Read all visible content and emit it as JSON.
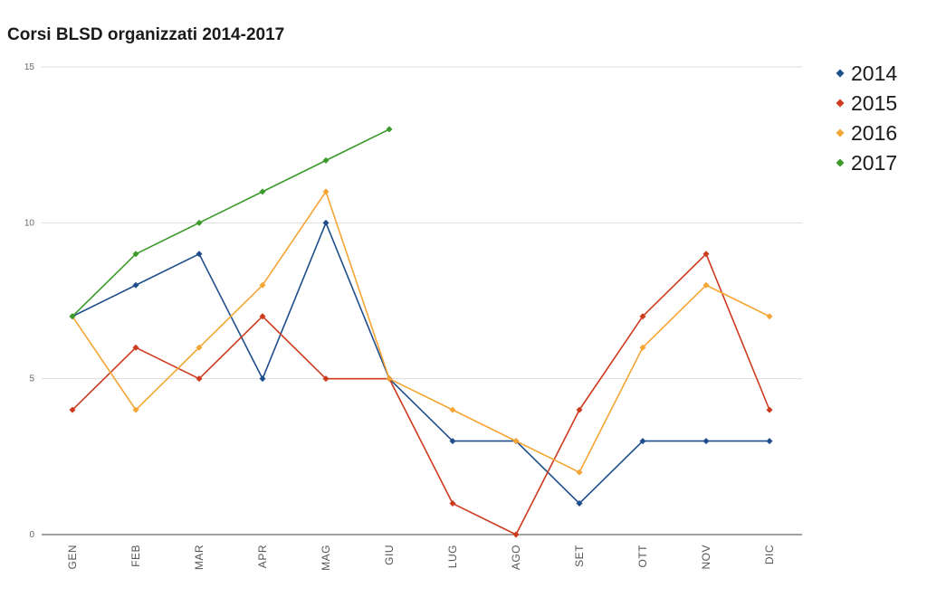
{
  "chart_data": {
    "type": "line",
    "title": "Corsi BLSD organizzati 2014-2017",
    "xlabel": "",
    "ylabel": "",
    "categories": [
      "GEN",
      "FEB",
      "MAR",
      "APR",
      "MAG",
      "GIU",
      "LUG",
      "AGO",
      "SET",
      "OTT",
      "NOV",
      "DIC"
    ],
    "ylim": [
      0,
      15
    ],
    "yticks": [
      0,
      5,
      10,
      15
    ],
    "grid": true,
    "legend_position": "right",
    "series": [
      {
        "name": "2014",
        "color": "#1f4e8c",
        "values": [
          7,
          8,
          9,
          5,
          10,
          5,
          3,
          3,
          1,
          3,
          3,
          3
        ]
      },
      {
        "name": "2015",
        "color": "#cc3b1e",
        "values": [
          4,
          6,
          5,
          7,
          5,
          5,
          1,
          0,
          4,
          7,
          9,
          4
        ]
      },
      {
        "name": "2016",
        "color": "#f5a534",
        "values": [
          7,
          4,
          6,
          8,
          11,
          5,
          4,
          3,
          2,
          6,
          8,
          7
        ]
      },
      {
        "name": "2017",
        "color": "#3b9a2a",
        "values": [
          7,
          9,
          10,
          11,
          12,
          13,
          null,
          null,
          null,
          null,
          null,
          null
        ]
      }
    ]
  }
}
